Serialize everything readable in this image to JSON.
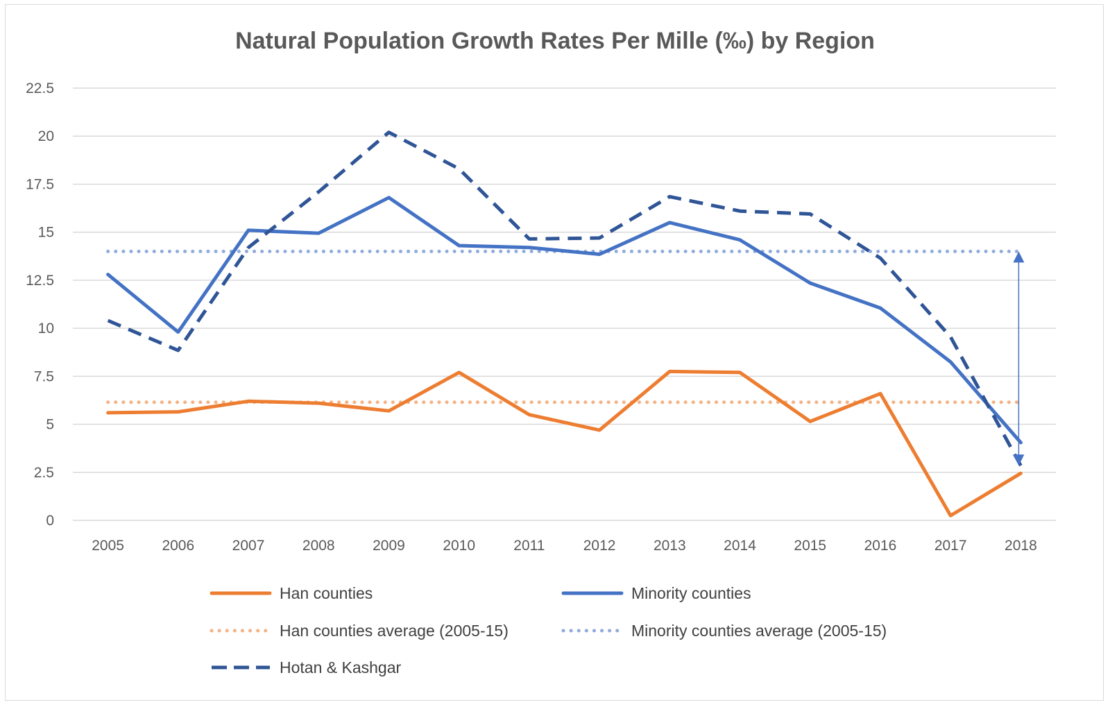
{
  "chart_data": {
    "type": "line",
    "title": "Natural Population Growth Rates Per Mille (‰) by Region",
    "xlabel": "",
    "ylabel": "",
    "ylim": [
      0,
      22.5
    ],
    "yticks": [
      "0",
      "2.5",
      "5",
      "7.5",
      "10",
      "12.5",
      "15",
      "17.5",
      "20",
      "22.5"
    ],
    "categories": [
      "2005",
      "2006",
      "2007",
      "2008",
      "2009",
      "2010",
      "2011",
      "2012",
      "2013",
      "2014",
      "2015",
      "2016",
      "2017",
      "2018"
    ],
    "grid": true,
    "legend_position": "bottom",
    "series": [
      {
        "name": "Han counties",
        "color": "#ed7d31",
        "style": "solid",
        "values": [
          5.6,
          5.65,
          6.2,
          6.1,
          5.7,
          7.7,
          5.5,
          4.7,
          7.75,
          7.7,
          5.15,
          6.6,
          0.25,
          2.45
        ]
      },
      {
        "name": "Minority counties",
        "color": "#4472c4",
        "style": "solid",
        "values": [
          12.8,
          9.8,
          15.1,
          14.95,
          16.8,
          14.3,
          14.2,
          13.85,
          15.5,
          14.6,
          12.35,
          11.05,
          8.25,
          4.05
        ]
      },
      {
        "name": "Han counties average (2005-15)",
        "color": "#f4b183",
        "style": "dotted",
        "values": [
          6.15,
          6.15,
          6.15,
          6.15,
          6.15,
          6.15,
          6.15,
          6.15,
          6.15,
          6.15,
          6.15,
          6.15,
          6.15,
          6.15
        ]
      },
      {
        "name": "Minority counties average (2005-15)",
        "color": "#8faadc",
        "style": "dotted",
        "values": [
          14.0,
          14.0,
          14.0,
          14.0,
          14.0,
          14.0,
          14.0,
          14.0,
          14.0,
          14.0,
          14.0,
          14.0,
          14.0,
          14.0
        ]
      },
      {
        "name": "Hotan & Kashgar",
        "color": "#2f5597",
        "style": "dashed",
        "values": [
          10.4,
          8.85,
          14.2,
          17.1,
          20.2,
          18.3,
          14.65,
          14.7,
          16.85,
          16.1,
          15.95,
          13.65,
          9.55,
          2.85
        ]
      }
    ],
    "annotation": {
      "type": "double-arrow",
      "at": "2018",
      "from": 14.0,
      "to": 2.85,
      "color": "#4472c4"
    }
  }
}
